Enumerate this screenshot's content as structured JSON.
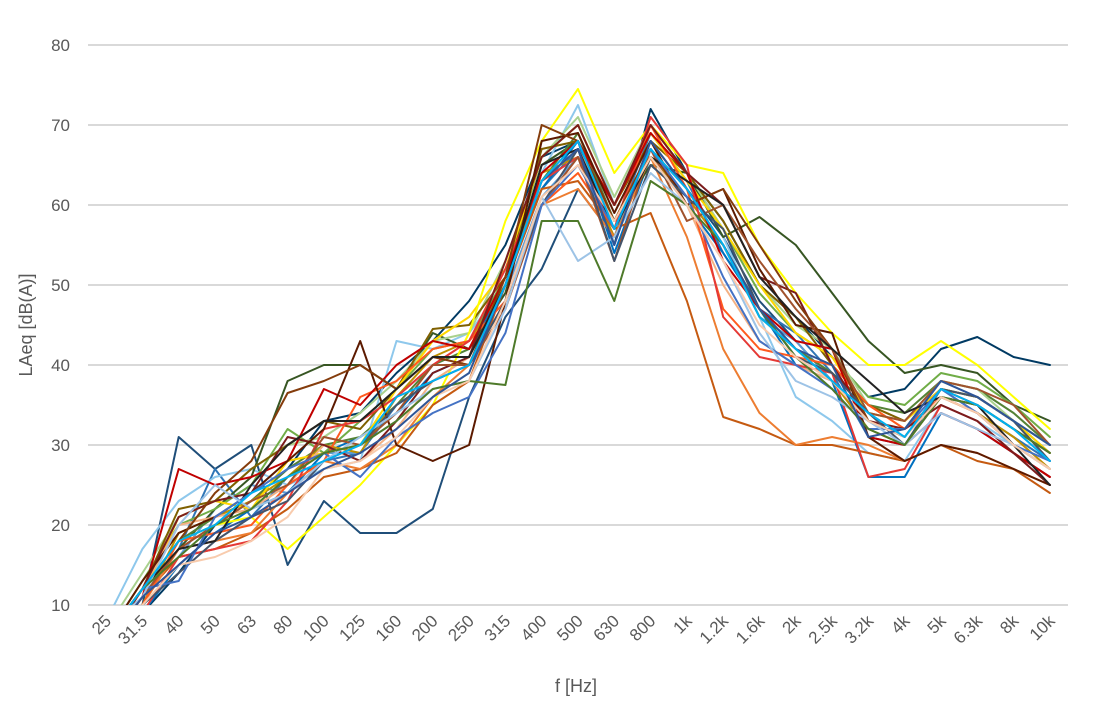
{
  "chart_data": {
    "type": "line",
    "xlabel": "f [Hz]",
    "ylabel": "LAeq [dB(A)]",
    "ylim": [
      10,
      80
    ],
    "yticks": [
      10,
      20,
      30,
      40,
      50,
      60,
      70,
      80
    ],
    "grid": true,
    "legend": "none",
    "categories": [
      "25",
      "31.5",
      "40",
      "50",
      "63",
      "80",
      "100",
      "125",
      "160",
      "200",
      "250",
      "315",
      "400",
      "500",
      "630",
      "800",
      "1k",
      "1.2k",
      "1.6k",
      "2k",
      "2.5k",
      "3.2k",
      "4k",
      "5k",
      "6.3k",
      "8k",
      "10k"
    ],
    "series": [
      {
        "color": "#003a63",
        "values": [
          7,
          9,
          14,
          20,
          23,
          27,
          33,
          34,
          39,
          43,
          48,
          55,
          66,
          68,
          55,
          72,
          64,
          58,
          50,
          46,
          41,
          36,
          37,
          42,
          43.5,
          41,
          40
        ]
      },
      {
        "color": "#1f4e79",
        "values": [
          6,
          10,
          31,
          27,
          30,
          15,
          23,
          19,
          19,
          22,
          36,
          46,
          52,
          62,
          56,
          68,
          62,
          56,
          48,
          43,
          38,
          33,
          31,
          37,
          36,
          33,
          30
        ]
      },
      {
        "color": "#2e75b6",
        "values": [
          5,
          11,
          17,
          27,
          21,
          26,
          28,
          29,
          35,
          38,
          40,
          50,
          62,
          67,
          57,
          69,
          63,
          54,
          47,
          44,
          39,
          31,
          30,
          36,
          34,
          31,
          28
        ]
      },
      {
        "color": "#5b9bd5",
        "values": [
          6,
          12,
          16,
          22,
          25,
          24,
          29,
          29,
          36,
          40,
          42,
          49,
          61,
          66,
          56,
          67,
          61,
          55,
          46,
          43,
          38,
          34,
          33,
          38,
          36,
          33,
          29
        ]
      },
      {
        "color": "#8ec8ec",
        "values": [
          8,
          17,
          23,
          26,
          27,
          25,
          27,
          28,
          43,
          42,
          44,
          50,
          64,
          72.5,
          60,
          70,
          64,
          56,
          46,
          36,
          33,
          29,
          28,
          35,
          33,
          30,
          27
        ]
      },
      {
        "color": "#0070c0",
        "values": [
          5,
          9,
          15,
          19,
          22,
          24,
          29,
          31,
          34,
          39,
          41,
          51,
          62,
          68,
          54,
          66,
          60,
          54,
          47,
          40,
          38,
          26,
          26,
          34,
          32,
          29,
          26
        ]
      },
      {
        "color": "#375623",
        "values": [
          6,
          11,
          17,
          22,
          26,
          38,
          40,
          40,
          37,
          44,
          42,
          49,
          65,
          68,
          58,
          65,
          64,
          56,
          58.5,
          55,
          49,
          43,
          39,
          40,
          39,
          35,
          33
        ]
      },
      {
        "color": "#548235",
        "values": [
          6,
          12,
          18,
          21,
          23,
          27,
          30,
          31,
          35,
          40,
          42,
          51,
          63,
          69,
          58,
          67,
          62,
          55,
          47,
          42,
          39,
          35,
          34,
          38,
          37,
          34,
          30
        ]
      },
      {
        "color": "#70ad47",
        "values": [
          6,
          13,
          20,
          22,
          25,
          32,
          29,
          33,
          37,
          42,
          43,
          51,
          66,
          70,
          60,
          69,
          63,
          57,
          49,
          44,
          41,
          36,
          35,
          39,
          38,
          35,
          31
        ]
      },
      {
        "color": "#a9d18e",
        "values": [
          7,
          14,
          21,
          23,
          27,
          30,
          31,
          34,
          38,
          43,
          44,
          53,
          66,
          71,
          61,
          70,
          64,
          57,
          50,
          45,
          42,
          35,
          33,
          38,
          37,
          33,
          30
        ]
      },
      {
        "color": "#7f6000",
        "values": [
          6,
          12,
          22,
          23,
          27,
          30,
          33,
          32,
          37,
          44.5,
          45,
          51,
          67,
          68,
          60,
          68,
          64,
          58,
          50,
          46,
          40,
          35,
          33,
          37,
          36,
          33,
          28
        ]
      },
      {
        "color": "#bf9000",
        "values": [
          5,
          10,
          19,
          21,
          23,
          26,
          30,
          29,
          36,
          41,
          43,
          50,
          64,
          66,
          56,
          66,
          61,
          55,
          46,
          42,
          38,
          32,
          30,
          36,
          34,
          31,
          27
        ]
      },
      {
        "color": "#ffd700",
        "values": [
          5,
          11,
          21,
          23,
          22,
          28,
          29,
          30,
          37,
          43,
          46,
          52,
          66,
          70,
          60,
          69,
          63,
          57,
          50,
          44,
          41,
          34,
          33,
          37,
          36,
          33,
          29
        ]
      },
      {
        "color": "#ffff00",
        "values": [
          6,
          12,
          18,
          20,
          21,
          17,
          21,
          25,
          30,
          35,
          44,
          58,
          68,
          74.5,
          64,
          70,
          65,
          64,
          55,
          49,
          44,
          40,
          40,
          43,
          40,
          36,
          32
        ]
      },
      {
        "color": "#c55a11",
        "values": [
          6,
          11,
          16,
          17,
          19,
          22,
          26,
          27,
          29,
          35,
          38,
          50,
          62,
          63,
          57,
          59,
          48,
          33.5,
          32,
          30,
          30,
          29,
          28,
          30,
          28,
          27,
          24
        ]
      },
      {
        "color": "#ed7d31",
        "values": [
          5,
          10,
          17,
          18,
          19,
          24,
          28,
          27,
          30,
          36,
          40,
          48,
          60,
          62,
          56,
          66,
          56,
          42,
          34,
          30,
          31,
          30,
          28,
          30,
          29,
          27,
          25
        ]
      },
      {
        "color": "#f4b183",
        "values": [
          6,
          12,
          20,
          21,
          22,
          25,
          30,
          28,
          32,
          38,
          41,
          50,
          63,
          67,
          58,
          67,
          60,
          50,
          43,
          40,
          38,
          33,
          32,
          36,
          34,
          30,
          27
        ]
      },
      {
        "color": "#ff5a1e",
        "values": [
          6,
          10,
          18,
          19,
          20,
          25,
          28,
          36,
          38,
          42,
          43,
          48,
          60,
          64,
          57,
          70,
          62,
          47,
          42,
          41,
          40,
          35,
          32,
          36,
          34,
          30,
          27
        ]
      },
      {
        "color": "#e53935",
        "values": [
          5,
          9,
          16,
          17,
          18,
          23,
          32,
          33,
          36,
          40,
          43,
          52,
          63,
          66,
          57,
          71,
          65,
          46,
          41,
          40,
          39,
          26,
          27,
          35,
          33,
          29,
          26
        ]
      },
      {
        "color": "#c00000",
        "values": [
          5,
          11,
          27,
          25,
          26,
          28,
          37,
          35,
          40,
          43,
          42,
          51,
          64,
          68,
          60,
          69,
          64,
          53,
          47,
          43,
          42,
          31,
          30,
          34,
          32,
          29,
          26
        ]
      },
      {
        "color": "#7b1c1c",
        "values": [
          5,
          12,
          21,
          23,
          24,
          31,
          30,
          28,
          33,
          39,
          41,
          53,
          66,
          70,
          60,
          70,
          64,
          60,
          51,
          49,
          40,
          33,
          32,
          35,
          33,
          29,
          25
        ]
      },
      {
        "color": "#5c1a00",
        "values": [
          6,
          13,
          19,
          21,
          24,
          28,
          32,
          43,
          30,
          28,
          30,
          48,
          68,
          69,
          59,
          68,
          60,
          62,
          52,
          45,
          44,
          31,
          28,
          30,
          29,
          27,
          25
        ]
      },
      {
        "color": "#843c0c",
        "values": [
          6,
          12,
          18,
          24,
          28,
          36.5,
          38,
          40,
          37,
          41,
          40,
          51,
          70,
          68,
          58,
          67,
          60,
          62,
          55,
          48,
          42,
          33,
          31,
          37,
          35,
          32,
          29
        ]
      },
      {
        "color": "#a0522d",
        "values": [
          5,
          11,
          17,
          20,
          23,
          25,
          31,
          30,
          34,
          40,
          40,
          47,
          60,
          66,
          53,
          67,
          58,
          60,
          53,
          47,
          42,
          34,
          33,
          38,
          37,
          35,
          30
        ]
      },
      {
        "color": "#44546a",
        "values": [
          5,
          10,
          14,
          18,
          21,
          23,
          28,
          30,
          35,
          38,
          40,
          48,
          60,
          67,
          53,
          65,
          61,
          57,
          47,
          41,
          39,
          34,
          30,
          37,
          36,
          33,
          28
        ]
      },
      {
        "color": "#222222",
        "values": [
          6,
          12,
          17,
          18,
          25,
          30,
          33,
          33,
          37,
          41,
          41,
          50,
          65,
          67,
          57,
          66,
          63,
          60,
          51,
          46,
          42,
          38,
          34,
          36,
          35,
          30,
          25
        ]
      },
      {
        "color": "#4472c4",
        "values": [
          6,
          12,
          13,
          21,
          24,
          27,
          29,
          26,
          31,
          34,
          36,
          44,
          60,
          65,
          57,
          67,
          61,
          51,
          43,
          40,
          37,
          32,
          32,
          37,
          34,
          30,
          28
        ]
      },
      {
        "color": "#9dc3e6",
        "values": [
          7,
          11,
          20,
          25,
          22,
          24,
          28,
          31,
          34,
          37,
          38,
          47,
          61,
          53,
          56,
          64,
          60,
          53,
          44,
          38,
          36,
          33,
          30,
          34,
          32,
          30,
          27
        ]
      },
      {
        "color": "#4e7a2a",
        "values": [
          6,
          12,
          16,
          20,
          22,
          26,
          29,
          30,
          33,
          37,
          38,
          37.5,
          58,
          58,
          48,
          63,
          60,
          55,
          47,
          41,
          37,
          32,
          30,
          36,
          35,
          32,
          29
        ]
      },
      {
        "color": "#f8cbad",
        "values": [
          5,
          10,
          15,
          16,
          18,
          21,
          27,
          28,
          31,
          36,
          38,
          48,
          61,
          65,
          58,
          66,
          60,
          53,
          45,
          41,
          38,
          33,
          31,
          36,
          34,
          30,
          27
        ]
      },
      {
        "color": "#2f5597",
        "values": [
          5,
          11,
          15,
          19,
          21,
          24,
          27,
          29,
          32,
          36,
          39,
          50,
          63,
          67,
          55,
          68,
          62,
          55,
          47,
          42,
          40,
          31,
          32,
          38,
          36,
          33,
          30
        ]
      },
      {
        "color": "#00b0f0",
        "values": [
          6,
          12,
          18,
          20,
          24,
          26,
          28,
          30,
          36,
          38,
          40,
          50,
          63,
          68,
          57,
          67,
          62,
          55,
          46,
          42,
          38,
          34,
          31,
          37,
          35,
          32,
          28
        ]
      }
    ]
  }
}
